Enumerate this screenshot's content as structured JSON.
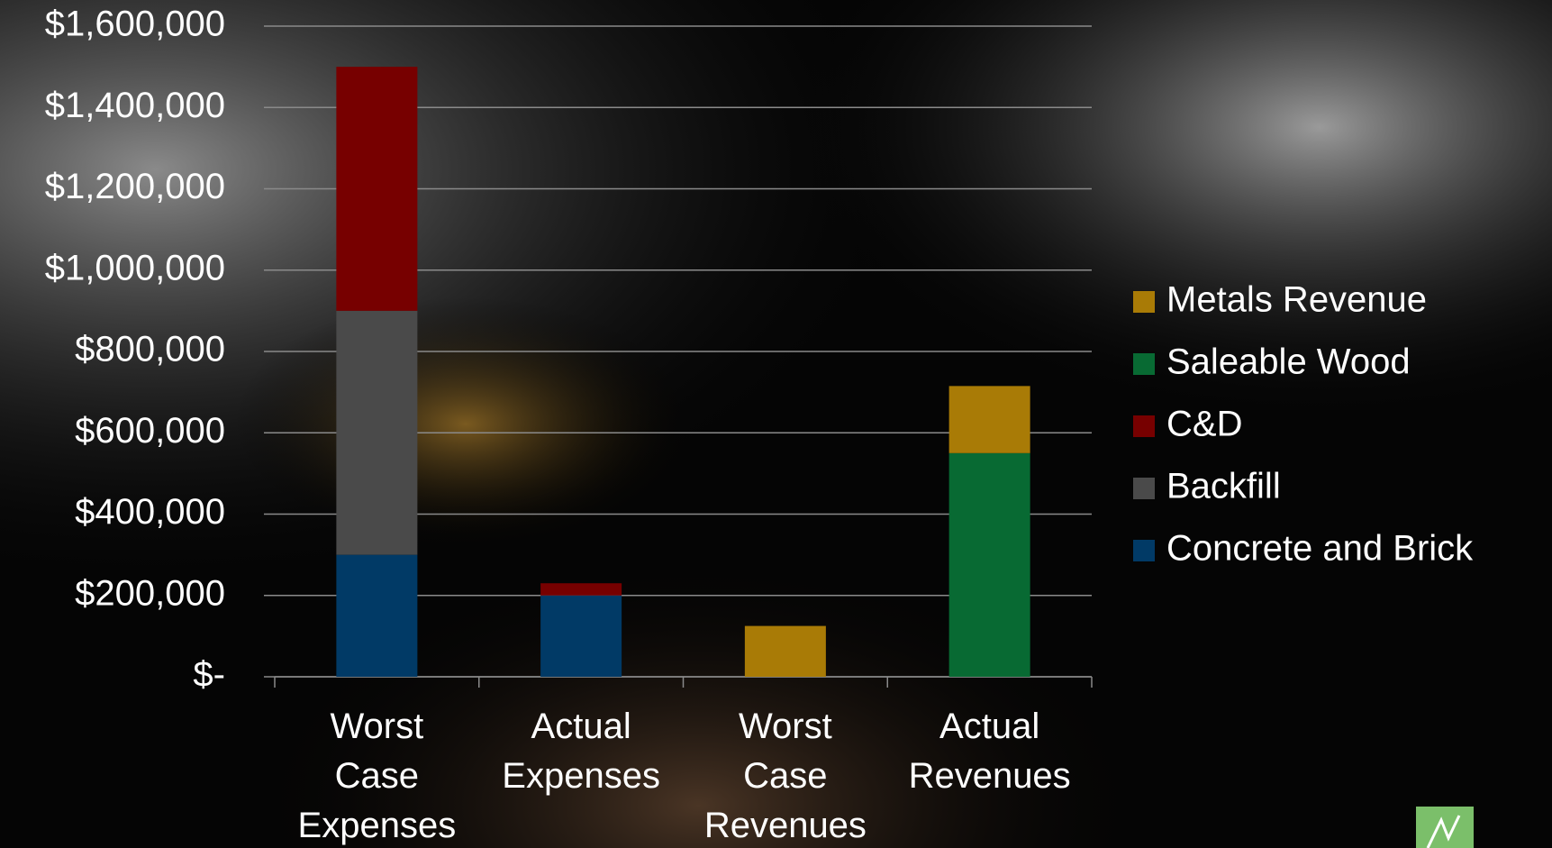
{
  "chart_data": {
    "type": "stacked_bar",
    "categories": [
      "Worst Case Expenses",
      "Actual Expenses",
      "Worst Case Revenues",
      "Actual Revenues"
    ],
    "series": [
      {
        "name": "Concrete and Brick",
        "color": "#013a66",
        "values": [
          300000,
          200000,
          0,
          0
        ]
      },
      {
        "name": "Backfill",
        "color": "#4a4a4a",
        "values": [
          600000,
          0,
          0,
          0
        ]
      },
      {
        "name": "C&D",
        "color": "#770000",
        "values": [
          600000,
          30000,
          0,
          0
        ]
      },
      {
        "name": "Saleable Wood",
        "color": "#086a33",
        "values": [
          0,
          0,
          0,
          550000
        ]
      },
      {
        "name": "Metals Revenue",
        "color": "#a97b06",
        "values": [
          0,
          0,
          125000,
          165000
        ]
      }
    ],
    "ylim": [
      0,
      1600000
    ],
    "yticks": [
      {
        "value": 0,
        "label": "$-"
      },
      {
        "value": 200000,
        "label": "$200,000"
      },
      {
        "value": 400000,
        "label": "$400,000"
      },
      {
        "value": 600000,
        "label": "$600,000"
      },
      {
        "value": 800000,
        "label": "$800,000"
      },
      {
        "value": 1000000,
        "label": "$1,000,000"
      },
      {
        "value": 1200000,
        "label": "$1,200,000"
      },
      {
        "value": 1400000,
        "label": "$1,400,000"
      },
      {
        "value": 1600000,
        "label": "$1,600,000"
      }
    ],
    "grid": true,
    "legend": "right"
  }
}
